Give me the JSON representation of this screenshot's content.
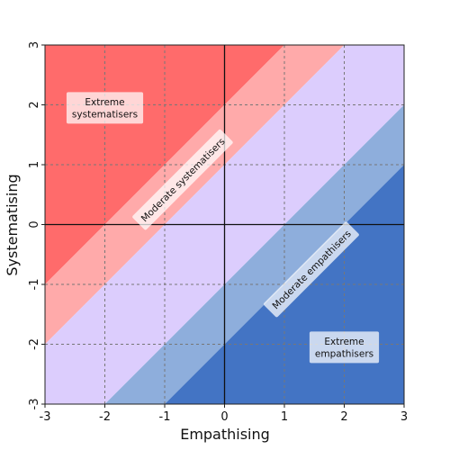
{
  "chart_data": {
    "type": "area",
    "title": "",
    "xlabel": "Empathising",
    "ylabel": "Systematising",
    "xlim": [
      -3,
      3
    ],
    "ylim": [
      -3,
      3
    ],
    "xticks": [
      "-3",
      "-2",
      "-1",
      "0",
      "1",
      "2",
      "3"
    ],
    "yticks": [
      "-3",
      "-2",
      "-1",
      "0",
      "1",
      "2",
      "3"
    ],
    "grid": true,
    "regions": [
      {
        "key": "extreme_systematisers",
        "label_lines": [
          "Extreme",
          "systematisers"
        ],
        "color": "#ff6b6b",
        "lower_offset": 2,
        "upper_offset": null,
        "label_x": -2.0,
        "label_y": 1.95,
        "label_rotation": 0
      },
      {
        "key": "moderate_systematisers",
        "label_lines": [
          "Moderate systematisers"
        ],
        "color": "#ffaaaa",
        "lower_offset": 1,
        "upper_offset": 2,
        "label_x": -0.7,
        "label_y": 0.75,
        "label_rotation": -45
      },
      {
        "key": "balanced",
        "label_lines": [],
        "color": "#dccdfd",
        "lower_offset": -1,
        "upper_offset": 1,
        "label_x": null,
        "label_y": null,
        "label_rotation": 0
      },
      {
        "key": "moderate_empathisers",
        "label_lines": [
          "Moderate empathisers"
        ],
        "color": "#8eaedc",
        "lower_offset": -2,
        "upper_offset": -1,
        "label_x": 1.45,
        "label_y": -0.75,
        "label_rotation": -45
      },
      {
        "key": "extreme_empathisers",
        "label_lines": [
          "Extreme",
          "empathisers"
        ],
        "color": "#4374c4",
        "lower_offset": null,
        "upper_offset": -2,
        "label_x": 2.0,
        "label_y": -2.05,
        "label_rotation": 0
      }
    ]
  }
}
